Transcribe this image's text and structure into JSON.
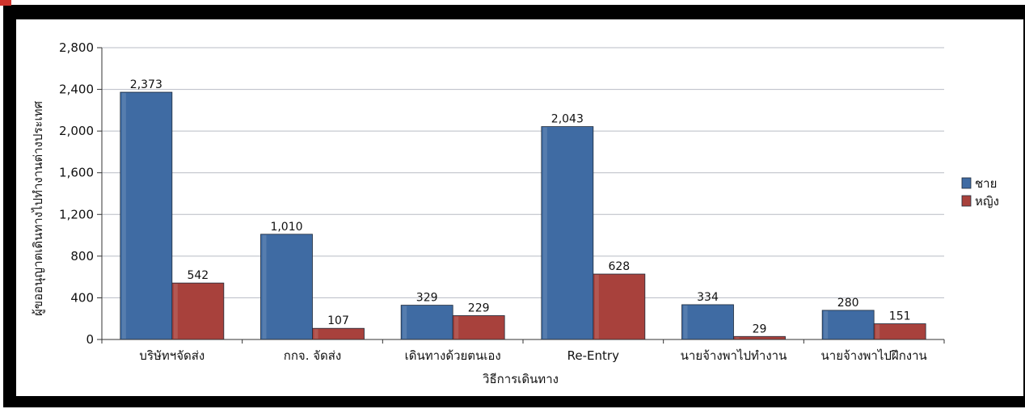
{
  "chart_data": {
    "type": "bar",
    "categories": [
      "บริษัทฯจัดส่ง",
      "กกจ. จัดส่ง",
      "เดินทางด้วยตนเอง",
      "Re-Entry",
      "นายจ้างพาไปทำงาน",
      "นายจ้างพาไปฝึกงาน"
    ],
    "series": [
      {
        "name": "ชาย",
        "values": [
          2373,
          1010,
          329,
          2043,
          334,
          280
        ],
        "color": "#3f6ba3"
      },
      {
        "name": "หญิง",
        "values": [
          542,
          107,
          229,
          628,
          29,
          151
        ],
        "color": "#a8413c"
      }
    ],
    "data_labels": {
      "ชาย": [
        "2,373",
        "1,010",
        "329",
        "2,043",
        "334",
        "280"
      ],
      "หญิง": [
        "542",
        "107",
        "229",
        "628",
        "29",
        "151"
      ]
    },
    "y_ticks": [
      "0",
      "400",
      "800",
      "1,200",
      "1,600",
      "2,000",
      "2,400",
      "2,800"
    ],
    "ylim": [
      0,
      2800
    ],
    "xlabel": "วิธีการเดินทาง",
    "ylabel": "ผู้ขออนุญาตเดินทางไปทำงานต่างประเทศ",
    "grid": true,
    "legend_position": "right"
  }
}
